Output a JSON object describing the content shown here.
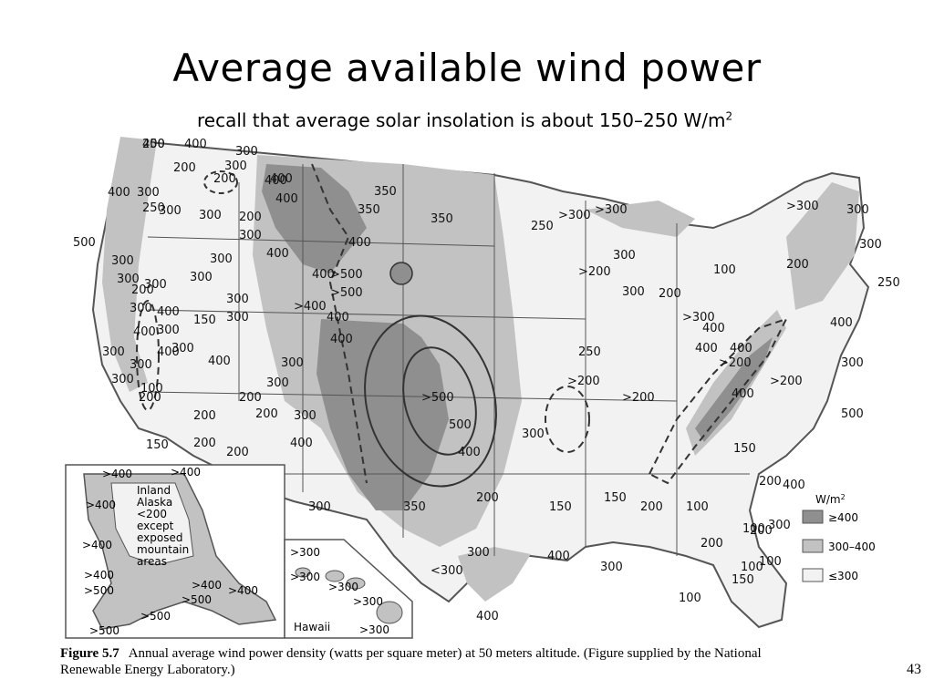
{
  "slide": {
    "title": "Average available wind power",
    "subtitle_main": "recall that average solar insolation is about 150–250 W/m",
    "subtitle_sup": "2",
    "page_number": "43"
  },
  "caption": {
    "figure_label": "Figure 5.7",
    "text": "Annual average wind power density (watts per square meter) at 50 meters altitude. (Figure supplied by the National Renewable Energy Laboratory.)"
  },
  "legend": {
    "unit": "W/m",
    "unit_sup": "2",
    "items": [
      {
        "label": "≥400",
        "color": "#8f8f8f"
      },
      {
        "label": "300–400",
        "color": "#c2c2c2"
      },
      {
        "label": "≤300",
        "color": "#f2f2f2"
      }
    ]
  },
  "alaska": {
    "note": [
      "Inland",
      "Alaska",
      "<200",
      "except",
      "exposed",
      "mountain",
      "areas"
    ],
    "labels": [
      ">400",
      ">400",
      ">400",
      ">400",
      ">400",
      ">500",
      ">400",
      ">500",
      ">400",
      ">500",
      ">500"
    ]
  },
  "hawaii": {
    "name": "Hawaii",
    "labels": [
      ">300",
      ">300",
      ">300",
      ">300",
      ">300"
    ]
  },
  "colors": {
    "high": "#8f8f8f",
    "mid": "#c2c2c2",
    "low": "#f2f2f2",
    "border": "#555555",
    "background": "#ffffff"
  },
  "map_labels": [
    "400",
    "400",
    "200",
    "300",
    "300",
    "200",
    "300",
    "400",
    "250",
    "300",
    "300",
    "200",
    "400",
    "300",
    "300",
    "200",
    "300",
    "400",
    "400",
    "500",
    "300",
    "300",
    "300",
    "300",
    "300",
    "300",
    "150",
    "400",
    "300",
    "300",
    "300",
    "300",
    "300",
    "400",
    "200",
    "100",
    "200",
    "200",
    "200",
    "200",
    "150",
    "200",
    "200",
    "200",
    "300",
    "400",
    "400",
    "350",
    "350",
    "350",
    "400",
    "400",
    "400",
    ">500",
    ">500",
    ">400",
    "400",
    "400",
    "300",
    "300",
    "300",
    "400",
    "300",
    ">500",
    "500",
    "400",
    "350",
    "300",
    "<300",
    "200",
    "400",
    "400",
    "300",
    "250",
    ">300",
    ">300",
    ">200",
    "300",
    "300",
    "250",
    ">200",
    ">200",
    "150",
    "200",
    "300",
    "150",
    "100",
    "100",
    "150",
    "250",
    "100",
    "100",
    "200",
    "200",
    "200",
    "100",
    "200",
    "200",
    ">300",
    ">300",
    "300",
    "300",
    "250",
    "400",
    "500",
    "400",
    "400",
    "400",
    ">200",
    ">200",
    "400",
    "300",
    "150",
    "400",
    "300",
    "100",
    "200",
    "250"
  ]
}
